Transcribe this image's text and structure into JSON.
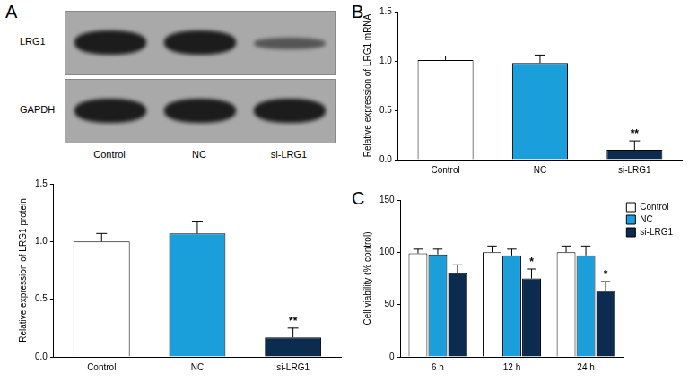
{
  "panel_labels": [
    "A",
    "B",
    "C"
  ],
  "blot": {
    "panel": "A",
    "rows": [
      "LRG1",
      "GAPDH"
    ],
    "lanes": [
      "Control",
      "NC",
      "si-LRG1"
    ]
  },
  "chart_data": [
    {
      "panel": "A",
      "type": "bar",
      "y_label": "Relative expression of LRG1 protein",
      "categories": [
        "Control",
        "NC",
        "si-LRG1"
      ],
      "values": [
        1.0,
        1.07,
        0.17
      ],
      "errors": [
        0.07,
        0.1,
        0.08
      ],
      "colors": [
        "#ffffff",
        "#1b9fdb",
        "#0b2b4f"
      ],
      "ylim": [
        0,
        1.5
      ],
      "yticks": [
        {
          "value": 0,
          "label": "0.0"
        },
        {
          "value": 0.5,
          "label": "0.5"
        },
        {
          "value": 1,
          "label": "1.0"
        },
        {
          "value": 1.5,
          "label": "1.5"
        }
      ],
      "grid": false,
      "annotations": [
        {
          "category": "si-LRG1",
          "text": "**"
        }
      ]
    },
    {
      "panel": "B",
      "type": "bar",
      "y_label": "Relative expression of LRG1 mRNA",
      "categories": [
        "Control",
        "NC",
        "si-LRG1"
      ],
      "values": [
        1.01,
        0.98,
        0.1
      ],
      "errors": [
        0.04,
        0.08,
        0.09
      ],
      "colors": [
        "#ffffff",
        "#1b9fdb",
        "#0b2b4f"
      ],
      "ylim": [
        0,
        1.5
      ],
      "yticks": [
        {
          "value": 0,
          "label": "0.0"
        },
        {
          "value": 0.5,
          "label": "0.5"
        },
        {
          "value": 1,
          "label": "1.0"
        },
        {
          "value": 1.5,
          "label": "1.5"
        }
      ],
      "grid": false,
      "annotations": [
        {
          "category": "si-LRG1",
          "text": "**"
        }
      ]
    },
    {
      "panel": "C",
      "type": "bar",
      "y_label": "Cell viability (% control)",
      "categories": [
        "6 h",
        "12 h",
        "24 h"
      ],
      "series": [
        {
          "name": "Control",
          "color": "#ffffff",
          "values": [
            99,
            100,
            100
          ],
          "errors": [
            4,
            6,
            6
          ]
        },
        {
          "name": "NC",
          "color": "#1b9fdb",
          "values": [
            98,
            97,
            97
          ],
          "errors": [
            5,
            6,
            9
          ]
        },
        {
          "name": "si-LRG1",
          "color": "#0b2b4f",
          "values": [
            80,
            75,
            63
          ],
          "errors": [
            8,
            9,
            9
          ]
        }
      ],
      "ylim": [
        0,
        150
      ],
      "yticks": [
        0,
        50,
        100,
        150
      ],
      "grid": false,
      "legend": "top-right",
      "annotations": [
        {
          "category": "12 h",
          "series": "si-LRG1",
          "text": "*"
        },
        {
          "category": "24 h",
          "series": "si-LRG1",
          "text": "*"
        }
      ]
    }
  ]
}
